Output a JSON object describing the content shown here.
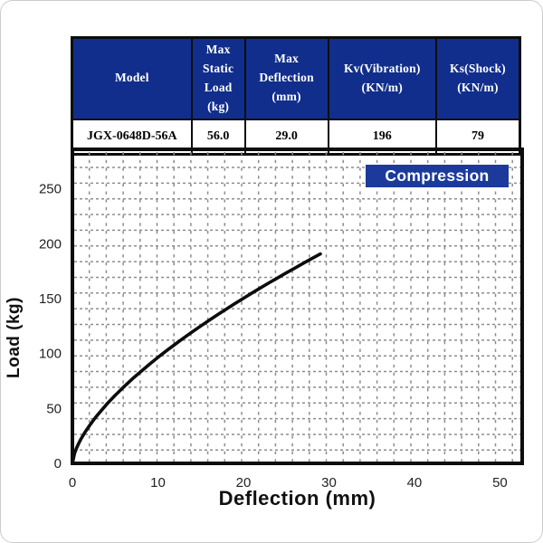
{
  "table": {
    "headers": [
      "Model",
      "Max\nStatic\nLoad\n(kg)",
      "Max\nDeflection\n(mm)",
      "Kv(Vibration)\n(KN/m)",
      "Ks(Shock)\n(KN/m)"
    ],
    "row": [
      "JGX-0648D-56A",
      "56.0",
      "29.0",
      "196",
      "79"
    ],
    "header_bg": "#112e8c"
  },
  "chart_data": {
    "type": "line",
    "title": "Compression",
    "xlabel": "Deflection (mm)",
    "ylabel": "Load (kg)",
    "xlim": [
      0,
      52.6
    ],
    "ylim": [
      0,
      286
    ],
    "xticks": [
      0,
      10,
      20,
      30,
      40,
      50
    ],
    "yticks": [
      0,
      50,
      100,
      150,
      200,
      250
    ],
    "grid": "dashed",
    "legend_position": "none",
    "series": [
      {
        "name": "compression-curve",
        "points": [
          [
            0,
            0
          ],
          [
            0.25,
            9.1
          ],
          [
            0.5,
            14.2
          ],
          [
            0.75,
            18.4
          ],
          [
            1,
            22.1
          ],
          [
            1.5,
            28.7
          ],
          [
            2,
            34.4
          ],
          [
            2.5,
            39.7
          ],
          [
            3,
            44.6
          ],
          [
            4,
            53.7
          ],
          [
            5,
            61.9
          ],
          [
            6,
            69.6
          ],
          [
            7,
            76.8
          ],
          [
            8,
            83.6
          ],
          [
            9,
            90.2
          ],
          [
            10,
            96.5
          ],
          [
            11,
            102.5
          ],
          [
            12,
            108.4
          ],
          [
            13,
            114.1
          ],
          [
            14,
            119.7
          ],
          [
            15,
            125.0
          ],
          [
            16,
            130.3
          ],
          [
            17,
            135.5
          ],
          [
            18,
            140.5
          ],
          [
            19,
            145.5
          ],
          [
            20,
            150.3
          ],
          [
            21,
            155.1
          ],
          [
            22,
            159.8
          ],
          [
            23,
            164.4
          ],
          [
            24,
            168.9
          ],
          [
            25,
            173.4
          ],
          [
            26,
            177.8
          ],
          [
            27,
            182.2
          ],
          [
            28,
            186.5
          ],
          [
            29,
            190.7
          ]
        ]
      }
    ],
    "colors": {
      "curve": "#0d0d0d",
      "grid": "#8d8d8d",
      "frame": "#0d0d0d",
      "badge_bg": "#1c3a9c",
      "tick_text": "#222222"
    }
  }
}
